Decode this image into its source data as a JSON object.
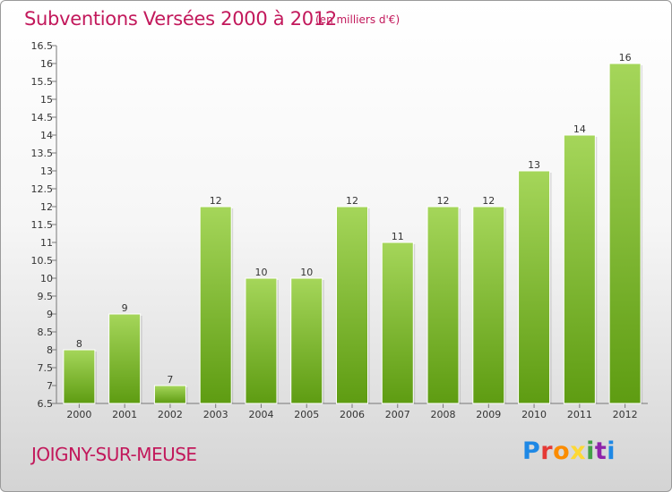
{
  "title": "Subventions Versées 2000 à 2012",
  "subtitle": "(en milliers d'€)",
  "location": "JOIGNY-SUR-MEUSE",
  "logo": {
    "letters": [
      "P",
      "r",
      "o",
      "x",
      "i",
      "t",
      "i"
    ],
    "colors": [
      "#1e88e5",
      "#e53935",
      "#fb8c00",
      "#fdd835",
      "#43a047",
      "#8e24aa",
      "#1e88e5"
    ]
  },
  "colors": {
    "bar_light": "#a5d65a",
    "bar_dark": "#5e9c12",
    "text": "#333333",
    "accent": "#c2185b"
  },
  "chart_data": {
    "type": "bar",
    "categories": [
      "2000",
      "2001",
      "2002",
      "2003",
      "2004",
      "2005",
      "2006",
      "2007",
      "2008",
      "2009",
      "2010",
      "2011",
      "2012"
    ],
    "values": [
      8,
      9,
      7,
      12,
      10,
      10,
      12,
      11,
      12,
      12,
      13,
      14,
      16
    ],
    "data_labels": [
      "8",
      "9",
      "7",
      "12",
      "10",
      "10",
      "12",
      "11",
      "12",
      "12",
      "13",
      "14",
      "16"
    ],
    "ylim": [
      6.5,
      16.5
    ],
    "yticks": [
      "6.5",
      "7",
      "7.5",
      "8",
      "8.5",
      "9",
      "9.5",
      "10",
      "10.5",
      "11",
      "11.5",
      "12",
      "12.5",
      "13",
      "13.5",
      "14",
      "14.5",
      "15",
      "15.5",
      "16",
      "16.5"
    ],
    "grid": false,
    "legend": "none"
  }
}
